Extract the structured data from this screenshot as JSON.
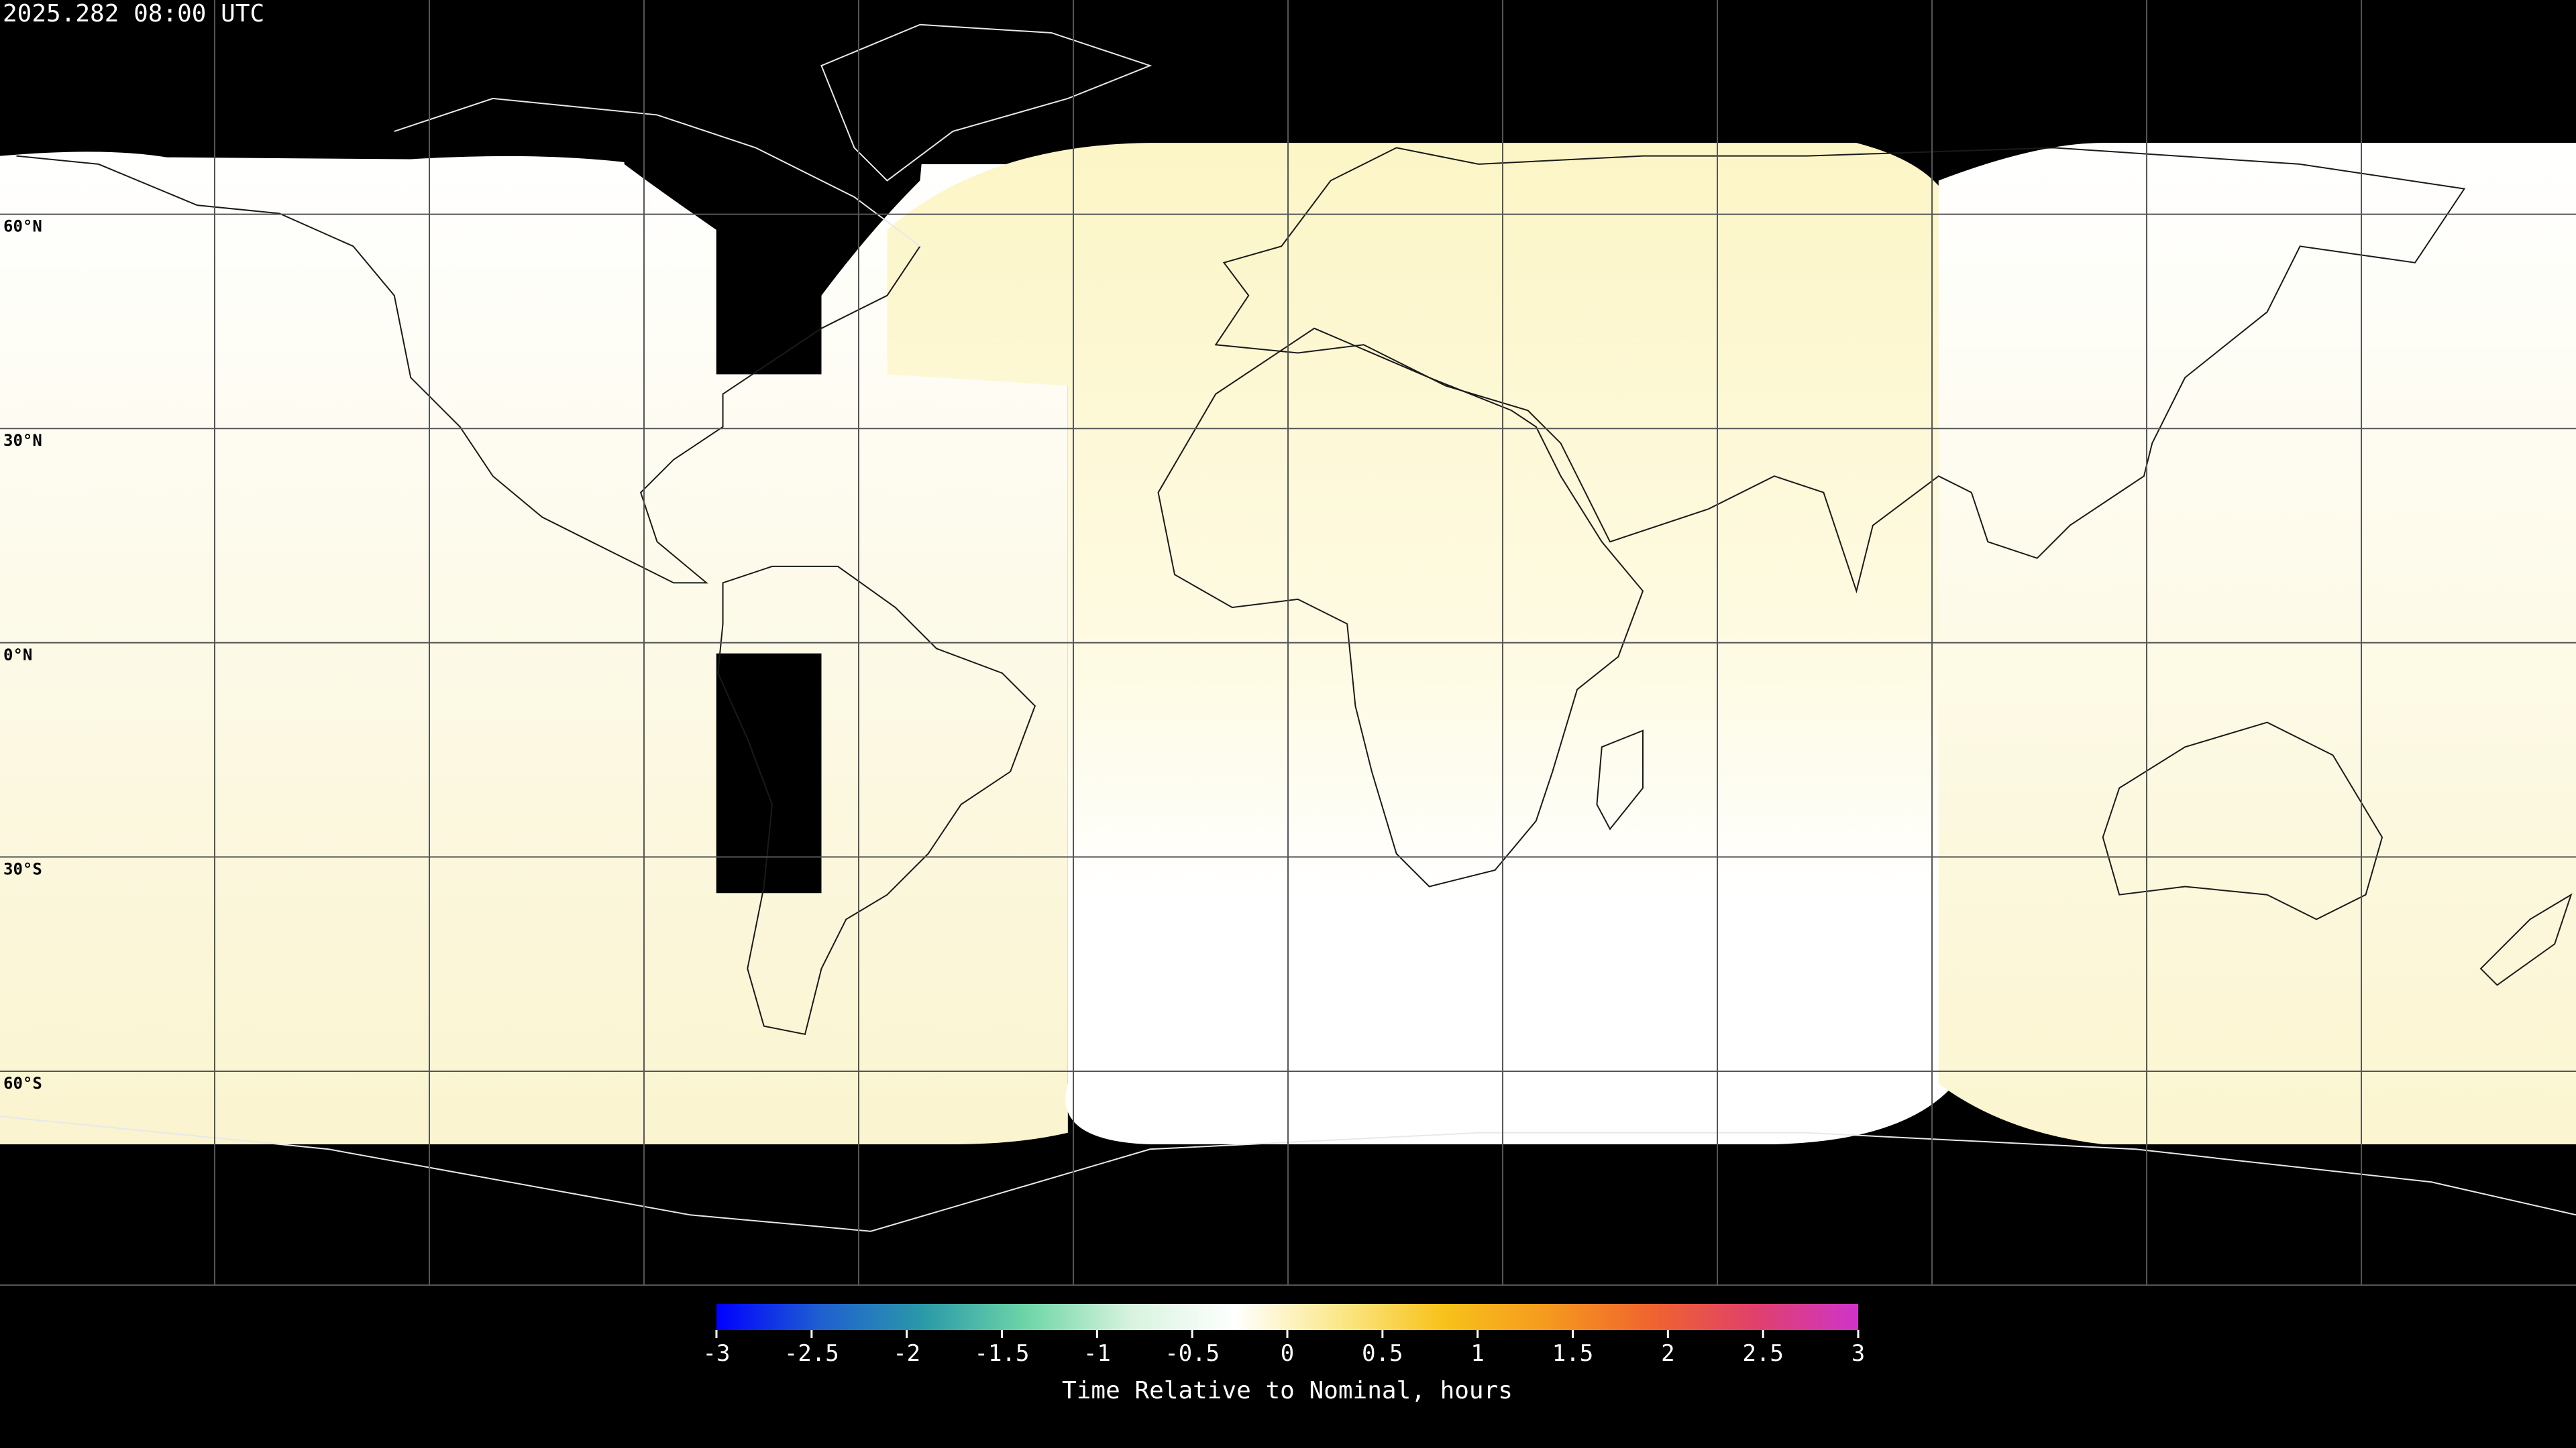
{
  "title": "2025.282 08:00 UTC",
  "map": {
    "lat_labels": [
      "60°N",
      "30°N",
      "0°N",
      "30°S",
      "60°S"
    ]
  },
  "colorbar": {
    "lim": [
      -3,
      3
    ],
    "ticks": [
      -3,
      -2.5,
      -2,
      -1.5,
      -1,
      -0.5,
      0,
      0.5,
      1,
      1.5,
      2,
      2.5,
      3
    ],
    "colors": [
      "#0000ff",
      "#1f5fd0",
      "#2a9aa8",
      "#6fd6a8",
      "#d8f3df",
      "#ffffff",
      "#fbe88a",
      "#f7c21a",
      "#f59a1e",
      "#f0642e",
      "#e0406a",
      "#cf34c9"
    ],
    "label": "Time Relative to Nominal, hours"
  }
}
